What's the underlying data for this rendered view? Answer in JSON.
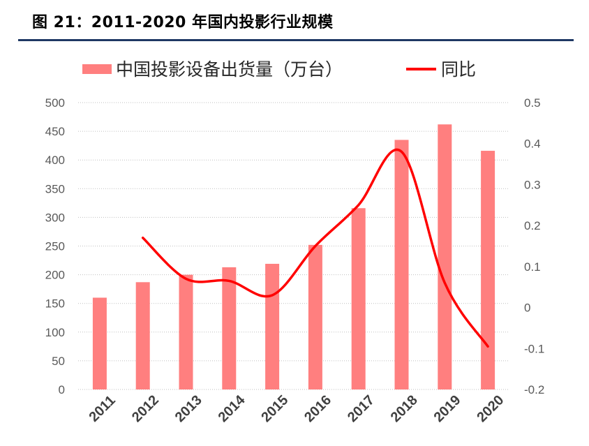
{
  "figure": {
    "title": "图 21：2011-2020 年国内投影行业规模"
  },
  "chart_data": {
    "type": "bar",
    "categories": [
      "2011",
      "2012",
      "2013",
      "2014",
      "2015",
      "2016",
      "2017",
      "2018",
      "2019",
      "2020"
    ],
    "series": [
      {
        "name": "中国投影设备出货量（万台）",
        "type": "bar",
        "axis": "left",
        "color": "#ff7f7f",
        "values": [
          160,
          187,
          200,
          213,
          219,
          252,
          316,
          435,
          462,
          416
        ]
      },
      {
        "name": "同比",
        "type": "line",
        "axis": "right",
        "color": "#ff0000",
        "values": [
          null,
          0.17,
          0.07,
          0.065,
          0.03,
          0.15,
          0.25,
          0.38,
          0.06,
          -0.095
        ]
      }
    ],
    "left_axis": {
      "ylim": [
        0,
        500
      ],
      "ticks": [
        "0",
        "50",
        "100",
        "150",
        "200",
        "250",
        "300",
        "350",
        "400",
        "450",
        "500"
      ]
    },
    "right_axis": {
      "ylim": [
        -0.2,
        0.5
      ],
      "ticks": [
        "-0.2",
        "-0.1",
        "0",
        "0.1",
        "0.2",
        "0.3",
        "0.4",
        "0.5"
      ]
    },
    "grid": true,
    "legend_position": "top"
  }
}
